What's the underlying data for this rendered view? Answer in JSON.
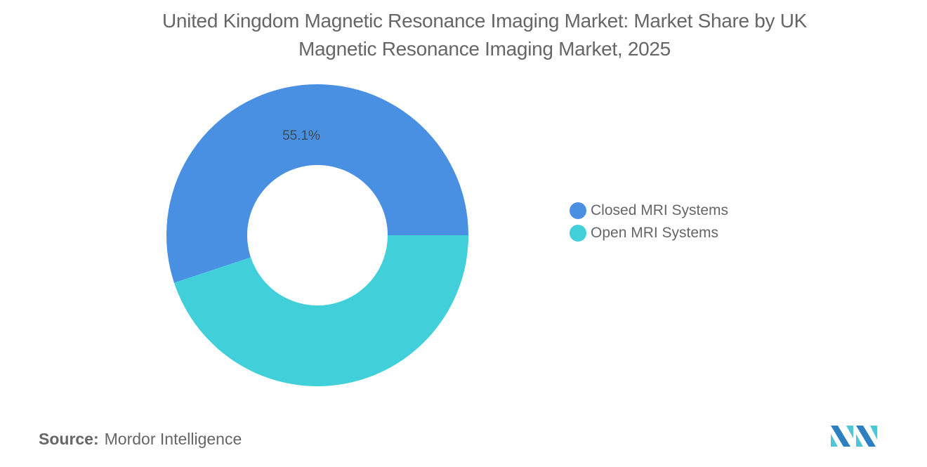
{
  "title": {
    "line1": "United Kingdom Magnetic Resonance Imaging Market: Market Share by UK",
    "line2": "Magnetic Resonance Imaging Market, 2025"
  },
  "legend": {
    "items": [
      {
        "label": "Closed MRI Systems",
        "color": "#4A90E2"
      },
      {
        "label": "Open MRI Systems",
        "color": "#41CFD9"
      }
    ]
  },
  "data_labels": {
    "closed": "55.1%"
  },
  "source": {
    "key": "Source:",
    "value": "Mordor Intelligence"
  },
  "colors": {
    "closed": "#4A90E2",
    "open": "#41CFD9",
    "logo_dark": "#2D7FC1",
    "logo_light": "#4FC6D6"
  },
  "chart_data": {
    "type": "pie",
    "title": "United Kingdom Magnetic Resonance Imaging Market: Market Share by UK Magnetic Resonance Imaging Market, 2025",
    "donut": true,
    "categories": [
      "Closed MRI Systems",
      "Open MRI Systems"
    ],
    "values": [
      55.1,
      44.9
    ],
    "units": "%",
    "labels_shown": [
      "55.1%",
      ""
    ],
    "legend_position": "right",
    "source": "Mordor Intelligence"
  }
}
